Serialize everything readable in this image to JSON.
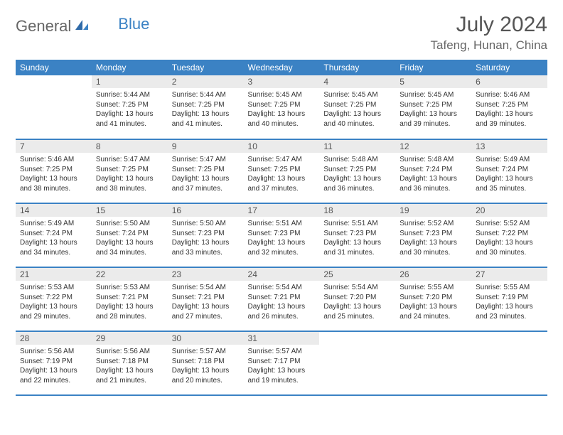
{
  "brand": {
    "part1": "General",
    "part2": "Blue"
  },
  "title": "July 2024",
  "location": "Tafeng, Hunan, China",
  "colors": {
    "header_bg": "#3b82c4",
    "header_text": "#ffffff",
    "daynum_bg": "#ebebeb",
    "text": "#333333",
    "title_text": "#555555",
    "row_border": "#3b82c4"
  },
  "fonts": {
    "title_size": 30,
    "location_size": 17,
    "header_size": 12,
    "daynum_size": 12,
    "content_size": 10
  },
  "weekdays": [
    "Sunday",
    "Monday",
    "Tuesday",
    "Wednesday",
    "Thursday",
    "Friday",
    "Saturday"
  ],
  "weeks": [
    [
      null,
      {
        "n": "1",
        "sr": "5:44 AM",
        "ss": "7:25 PM",
        "dl": "13 hours and 41 minutes."
      },
      {
        "n": "2",
        "sr": "5:44 AM",
        "ss": "7:25 PM",
        "dl": "13 hours and 41 minutes."
      },
      {
        "n": "3",
        "sr": "5:45 AM",
        "ss": "7:25 PM",
        "dl": "13 hours and 40 minutes."
      },
      {
        "n": "4",
        "sr": "5:45 AM",
        "ss": "7:25 PM",
        "dl": "13 hours and 40 minutes."
      },
      {
        "n": "5",
        "sr": "5:45 AM",
        "ss": "7:25 PM",
        "dl": "13 hours and 39 minutes."
      },
      {
        "n": "6",
        "sr": "5:46 AM",
        "ss": "7:25 PM",
        "dl": "13 hours and 39 minutes."
      }
    ],
    [
      {
        "n": "7",
        "sr": "5:46 AM",
        "ss": "7:25 PM",
        "dl": "13 hours and 38 minutes."
      },
      {
        "n": "8",
        "sr": "5:47 AM",
        "ss": "7:25 PM",
        "dl": "13 hours and 38 minutes."
      },
      {
        "n": "9",
        "sr": "5:47 AM",
        "ss": "7:25 PM",
        "dl": "13 hours and 37 minutes."
      },
      {
        "n": "10",
        "sr": "5:47 AM",
        "ss": "7:25 PM",
        "dl": "13 hours and 37 minutes."
      },
      {
        "n": "11",
        "sr": "5:48 AM",
        "ss": "7:25 PM",
        "dl": "13 hours and 36 minutes."
      },
      {
        "n": "12",
        "sr": "5:48 AM",
        "ss": "7:24 PM",
        "dl": "13 hours and 36 minutes."
      },
      {
        "n": "13",
        "sr": "5:49 AM",
        "ss": "7:24 PM",
        "dl": "13 hours and 35 minutes."
      }
    ],
    [
      {
        "n": "14",
        "sr": "5:49 AM",
        "ss": "7:24 PM",
        "dl": "13 hours and 34 minutes."
      },
      {
        "n": "15",
        "sr": "5:50 AM",
        "ss": "7:24 PM",
        "dl": "13 hours and 34 minutes."
      },
      {
        "n": "16",
        "sr": "5:50 AM",
        "ss": "7:23 PM",
        "dl": "13 hours and 33 minutes."
      },
      {
        "n": "17",
        "sr": "5:51 AM",
        "ss": "7:23 PM",
        "dl": "13 hours and 32 minutes."
      },
      {
        "n": "18",
        "sr": "5:51 AM",
        "ss": "7:23 PM",
        "dl": "13 hours and 31 minutes."
      },
      {
        "n": "19",
        "sr": "5:52 AM",
        "ss": "7:23 PM",
        "dl": "13 hours and 30 minutes."
      },
      {
        "n": "20",
        "sr": "5:52 AM",
        "ss": "7:22 PM",
        "dl": "13 hours and 30 minutes."
      }
    ],
    [
      {
        "n": "21",
        "sr": "5:53 AM",
        "ss": "7:22 PM",
        "dl": "13 hours and 29 minutes."
      },
      {
        "n": "22",
        "sr": "5:53 AM",
        "ss": "7:21 PM",
        "dl": "13 hours and 28 minutes."
      },
      {
        "n": "23",
        "sr": "5:54 AM",
        "ss": "7:21 PM",
        "dl": "13 hours and 27 minutes."
      },
      {
        "n": "24",
        "sr": "5:54 AM",
        "ss": "7:21 PM",
        "dl": "13 hours and 26 minutes."
      },
      {
        "n": "25",
        "sr": "5:54 AM",
        "ss": "7:20 PM",
        "dl": "13 hours and 25 minutes."
      },
      {
        "n": "26",
        "sr": "5:55 AM",
        "ss": "7:20 PM",
        "dl": "13 hours and 24 minutes."
      },
      {
        "n": "27",
        "sr": "5:55 AM",
        "ss": "7:19 PM",
        "dl": "13 hours and 23 minutes."
      }
    ],
    [
      {
        "n": "28",
        "sr": "5:56 AM",
        "ss": "7:19 PM",
        "dl": "13 hours and 22 minutes."
      },
      {
        "n": "29",
        "sr": "5:56 AM",
        "ss": "7:18 PM",
        "dl": "13 hours and 21 minutes."
      },
      {
        "n": "30",
        "sr": "5:57 AM",
        "ss": "7:18 PM",
        "dl": "13 hours and 20 minutes."
      },
      {
        "n": "31",
        "sr": "5:57 AM",
        "ss": "7:17 PM",
        "dl": "13 hours and 19 minutes."
      },
      null,
      null,
      null
    ]
  ],
  "labels": {
    "sunrise": "Sunrise:",
    "sunset": "Sunset:",
    "daylight": "Daylight:"
  }
}
